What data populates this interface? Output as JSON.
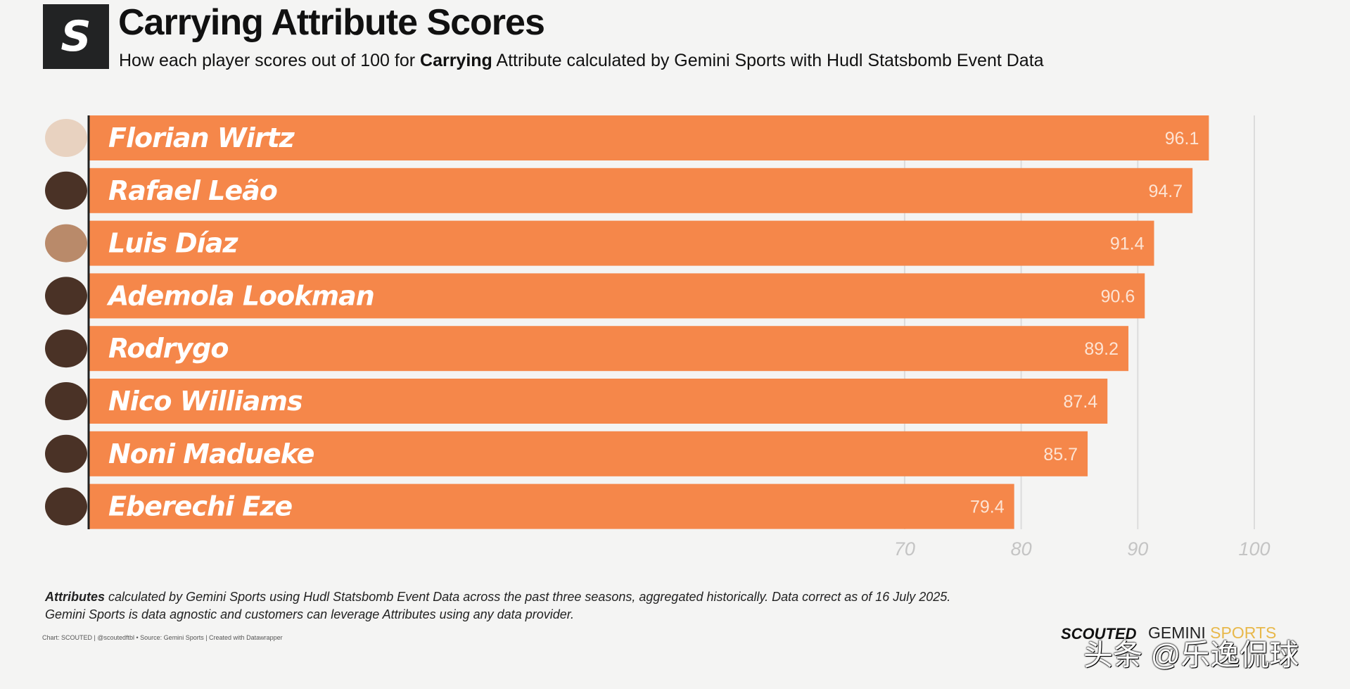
{
  "header": {
    "logo_letter": "S",
    "title": "Carrying Attribute Scores",
    "subtitle_pre": "How each player scores out of 100 for ",
    "subtitle_bold": "Carrying",
    "subtitle_post": " Attribute calculated by Gemini Sports with Hudl Statsbomb Event Data"
  },
  "chart_data": {
    "type": "bar",
    "orientation": "horizontal",
    "title": "Carrying Attribute Scores",
    "categories": [
      "Florian Wirtz",
      "Rafael Leão",
      "Luis Díaz",
      "Ademola Lookman",
      "Rodrygo",
      "Nico Williams",
      "Noni Madueke",
      "Eberechi Eze"
    ],
    "values": [
      96.1,
      94.7,
      91.4,
      90.6,
      89.2,
      87.4,
      85.7,
      79.4
    ],
    "value_labels": [
      "96.1",
      "94.7",
      "91.4",
      "90.6",
      "89.2",
      "87.4",
      "85.7",
      "79.4"
    ],
    "xlim": [
      0,
      100
    ],
    "xticks": [
      "70",
      "80",
      "90",
      "100"
    ],
    "grid": true,
    "bar_color": "#f5874a"
  },
  "footer": {
    "note_bold": "Attributes",
    "note_line1": " calculated by Gemini Sports using Hudl Statsbomb Event Data across the past three seasons, aggregated historically. Data correct as of 16 July 2025.",
    "note_line2": "Gemini Sports is data agnostic and customers can leverage Attributes using any data provider.",
    "credits": "Chart: SCOUTED | @scoutedftbl • Source: Gemini Sports | Created with Datawrapper",
    "brand_scouted": "SCOUTED",
    "brand_gemini": "GEMINI",
    "brand_sports": "SPORTS",
    "watermark": "头条 @乐逸侃球"
  }
}
